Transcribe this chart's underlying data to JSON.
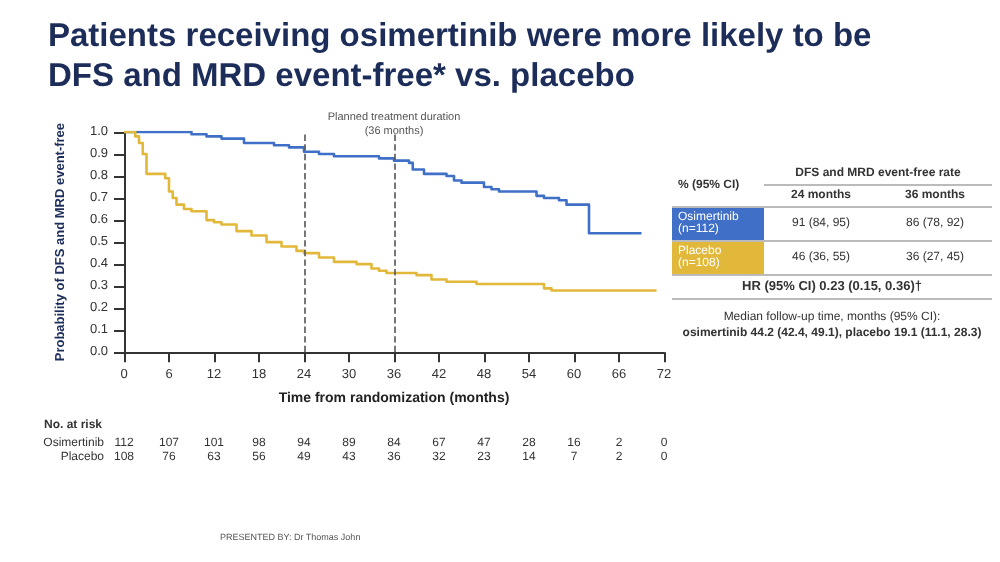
{
  "chart_data": {
    "type": "step",
    "title": "Patients receiving osimertinib were more likely to be DFS and MRD event-free* vs. placebo",
    "xlabel": "Time from randomization (months)",
    "ylabel": "Probability of DFS and MRD event-free",
    "series": [
      {
        "name": "Osimertinib",
        "color": "#3f6fc6",
        "x": [
          0,
          8,
          9,
          11,
          13,
          16,
          20,
          22,
          24,
          26,
          28,
          34,
          36,
          38,
          38.5,
          40,
          43,
          44,
          45,
          48,
          49,
          50,
          55,
          56,
          58,
          59,
          62,
          69
        ],
        "values": [
          1.0,
          1.0,
          0.99,
          0.98,
          0.97,
          0.95,
          0.94,
          0.93,
          0.91,
          0.9,
          0.89,
          0.88,
          0.87,
          0.86,
          0.83,
          0.81,
          0.8,
          0.78,
          0.77,
          0.75,
          0.74,
          0.73,
          0.71,
          0.7,
          0.69,
          0.67,
          0.54,
          0.54
        ]
      },
      {
        "name": "Placebo",
        "color": "#e2b83a",
        "x": [
          0,
          1.5,
          2,
          2.5,
          3,
          5.5,
          6,
          6.5,
          7,
          8,
          9,
          11,
          12,
          13,
          15,
          17,
          19,
          21,
          23,
          24,
          26,
          28,
          31,
          33,
          34,
          35,
          39,
          41,
          43,
          47,
          50,
          56,
          57,
          71
        ],
        "values": [
          1.0,
          0.98,
          0.95,
          0.9,
          0.81,
          0.79,
          0.73,
          0.7,
          0.67,
          0.65,
          0.64,
          0.6,
          0.59,
          0.58,
          0.55,
          0.53,
          0.5,
          0.48,
          0.46,
          0.45,
          0.43,
          0.41,
          0.4,
          0.38,
          0.37,
          0.36,
          0.35,
          0.33,
          0.32,
          0.31,
          0.31,
          0.29,
          0.28,
          0.28
        ]
      }
    ],
    "xlim": [
      0,
      72
    ],
    "xticks": [
      0,
      6,
      12,
      18,
      24,
      30,
      36,
      42,
      48,
      54,
      60,
      66,
      72
    ],
    "ylim": [
      0,
      1
    ],
    "yticks": [
      {
        "value": 0,
        "label": "0.0"
      },
      0.1,
      0.2,
      0.3,
      0.4,
      0.5,
      0.6,
      0.7,
      0.8,
      0.9,
      {
        "value": 1,
        "label": "1.0"
      }
    ],
    "ref_lines": [
      {
        "axis": "x",
        "value": 24,
        "label": null,
        "line_style": "dashed"
      },
      {
        "axis": "x",
        "value": 36,
        "label": "Planned treatment duration (36 months)",
        "line_style": "dashed"
      }
    ],
    "grid": false,
    "legend": false,
    "marker": "none",
    "line_style": "solid",
    "annotations": [
      "% (95% CI)",
      "DFS and MRD event-free rate",
      "24 months",
      "36 months",
      "(n=112)",
      "91 (84, 95)",
      "86 (78, 92)",
      "(n=108)",
      "46 (36, 55)",
      "36 (27, 45)",
      "HR (95% CI) 0.23 (0.15, 0.36)†",
      "Median follow-up time, months (95% CI):",
      "osimertinib 44.2 (42.4, 49.1), placebo 19.1 (11.1, 28.3)",
      "No. at risk",
      "Osimertinib 112 107 101 98 94 89 84 67 47 28 16 2 0",
      "Placebo 108 76 63 56 49 43 36 32 23 14 7 2 0",
      "PRESENTED BY: Dr Thomas John"
    ]
  }
}
